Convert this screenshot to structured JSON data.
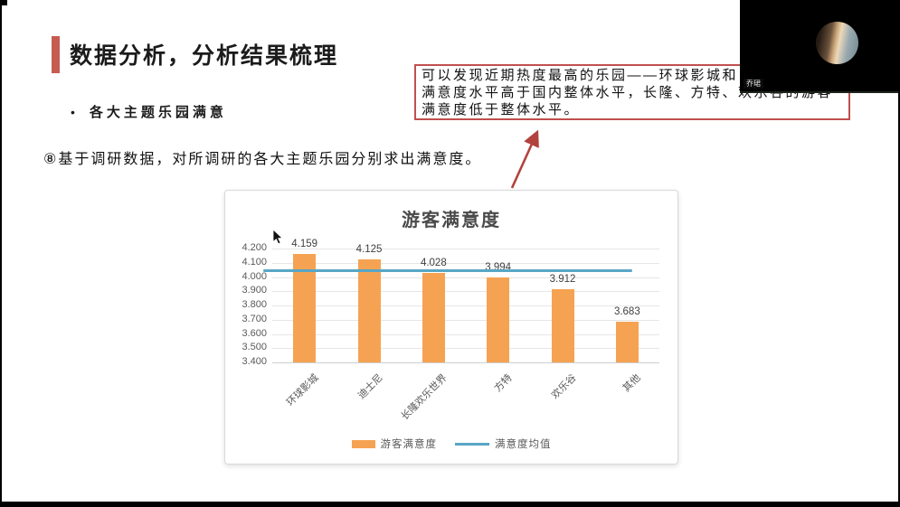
{
  "slide": {
    "title": "数据分析，分析结果梳理",
    "accent_color": "#c65b50",
    "bullet": "各大主题乐园满意",
    "bullet_marker": "•",
    "body_text": "⑧基于调研数据，对所调研的各大主题乐园分别求出满意度。",
    "annotation": {
      "border_color": "#c0504d",
      "lines": [
        "可以发现近期热度最高的乐园——环球影城和",
        "满意度水平高于国内整体水平，长隆、方特、欢乐谷的游客",
        "满意度低于整体水平。"
      ]
    }
  },
  "webcam": {
    "participant_name": "乔珺",
    "background_color": "#000000"
  },
  "chart_data": {
    "type": "bar",
    "title": "游客满意度",
    "categories": [
      "环球影城",
      "迪士尼",
      "长隆欢乐世界",
      "方特",
      "欢乐谷",
      "其他"
    ],
    "series": [
      {
        "name": "游客满意度",
        "type": "bar",
        "color": "#f5a352",
        "values": [
          4.159,
          4.125,
          4.028,
          3.994,
          3.912,
          3.683
        ]
      },
      {
        "name": "满意度均值",
        "type": "line",
        "color": "#58a6c6",
        "value": 4.05
      }
    ],
    "ylim": [
      3.4,
      4.2
    ],
    "ytick_step": 0.1,
    "ytick_labels": [
      "3.400",
      "3.500",
      "3.600",
      "3.700",
      "3.800",
      "3.900",
      "4.000",
      "4.100",
      "4.200"
    ],
    "grid": true,
    "legend_position": "bottom"
  }
}
